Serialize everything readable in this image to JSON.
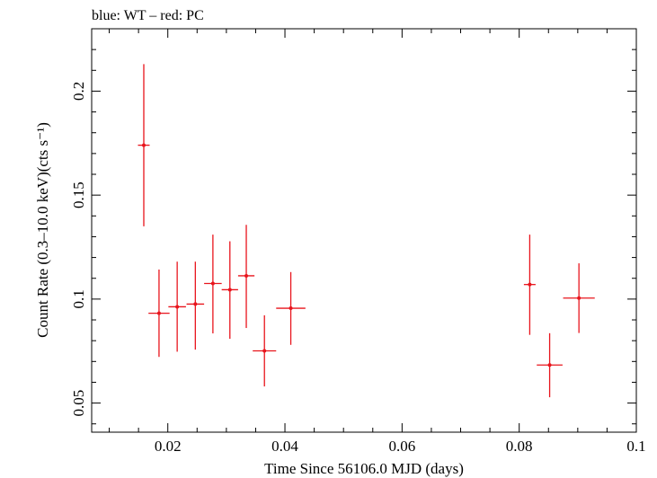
{
  "chart_data": {
    "type": "scatter",
    "title": "blue: WT – red: PC",
    "xlabel": "Time Since 56106.0 MJD (days)",
    "ylabel": "Count Rate (0.3–10.0 keV)(cts s⁻¹)",
    "xlim": [
      0.007,
      0.1
    ],
    "ylim": [
      0.036,
      0.23
    ],
    "x_ticks": [
      0.02,
      0.04,
      0.06,
      0.08,
      0.1
    ],
    "x_tick_labels": [
      "0.02",
      "0.04",
      "0.06",
      "0.08",
      "0.1"
    ],
    "y_ticks": [
      0.05,
      0.1,
      0.15,
      0.2
    ],
    "y_tick_labels": [
      "0.05",
      "0.1",
      "0.15",
      "0.2"
    ],
    "grid": false,
    "series": [
      {
        "color": "#e8141c",
        "points": [
          {
            "x": 0.0159,
            "xerr": 0.001,
            "y": 0.174,
            "ylo": 0.135,
            "yhi": 0.213
          },
          {
            "x": 0.0185,
            "xerr": 0.0018,
            "y": 0.0932,
            "ylo": 0.0722,
            "yhi": 0.1142
          },
          {
            "x": 0.0216,
            "xerr": 0.0015,
            "y": 0.0963,
            "ylo": 0.0747,
            "yhi": 0.118
          },
          {
            "x": 0.0247,
            "xerr": 0.0015,
            "y": 0.0976,
            "ylo": 0.0757,
            "yhi": 0.118
          },
          {
            "x": 0.0277,
            "xerr": 0.0015,
            "y": 0.1075,
            "ylo": 0.0835,
            "yhi": 0.131
          },
          {
            "x": 0.0306,
            "xerr": 0.0014,
            "y": 0.1045,
            "ylo": 0.0809,
            "yhi": 0.1278
          },
          {
            "x": 0.0334,
            "xerr": 0.0014,
            "y": 0.1112,
            "ylo": 0.0861,
            "yhi": 0.1357
          },
          {
            "x": 0.0365,
            "xerr": 0.002,
            "y": 0.0751,
            "ylo": 0.058,
            "yhi": 0.0922
          },
          {
            "x": 0.041,
            "xerr": 0.0025,
            "y": 0.0956,
            "ylo": 0.078,
            "yhi": 0.113
          },
          {
            "x": 0.0818,
            "xerr": 0.001,
            "y": 0.107,
            "ylo": 0.0828,
            "yhi": 0.131
          },
          {
            "x": 0.0852,
            "xerr": 0.0022,
            "y": 0.0683,
            "ylo": 0.0528,
            "yhi": 0.0836
          },
          {
            "x": 0.0902,
            "xerr": 0.0027,
            "y": 0.1005,
            "ylo": 0.0837,
            "yhi": 0.1172
          }
        ]
      }
    ]
  }
}
